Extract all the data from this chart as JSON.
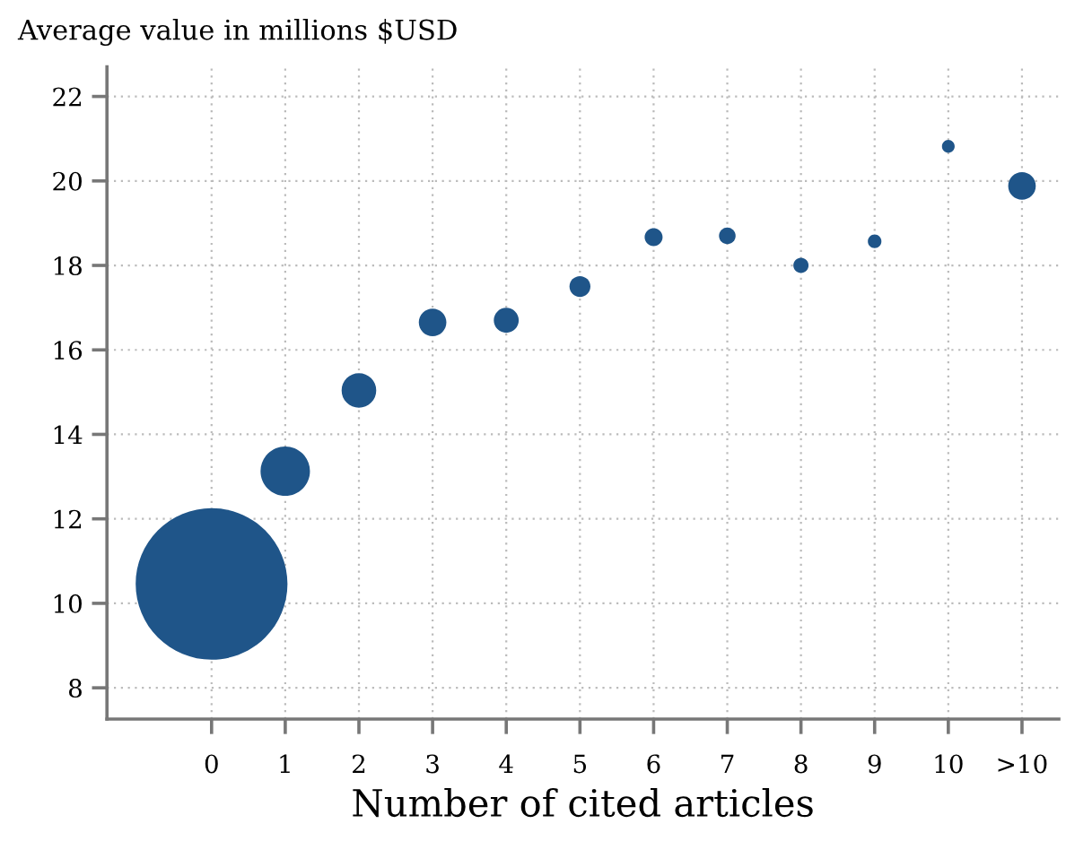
{
  "chart_data": {
    "type": "bubble",
    "ylabel": "Average value in millions $USD",
    "xlabel": "Number of cited articles",
    "categories": [
      "0",
      "1",
      "2",
      "3",
      "4",
      "5",
      "6",
      "7",
      "8",
      "9",
      "10",
      ">10"
    ],
    "series": [
      {
        "color": "#1f5589",
        "values": [
          10.46,
          13.13,
          15.04,
          16.65,
          16.7,
          17.5,
          18.67,
          18.7,
          18.0,
          18.57,
          20.82,
          19.88
        ],
        "sizes": [
          1,
          0.106,
          0.052,
          0.033,
          0.027,
          0.019,
          0.014,
          0.012,
          0.01,
          0.008,
          0.007,
          0.033
        ]
      }
    ],
    "ylim": [
      7.26,
      22.7
    ],
    "yticks": [
      8,
      10,
      12,
      14,
      16,
      18,
      20,
      22
    ],
    "grid": true
  }
}
